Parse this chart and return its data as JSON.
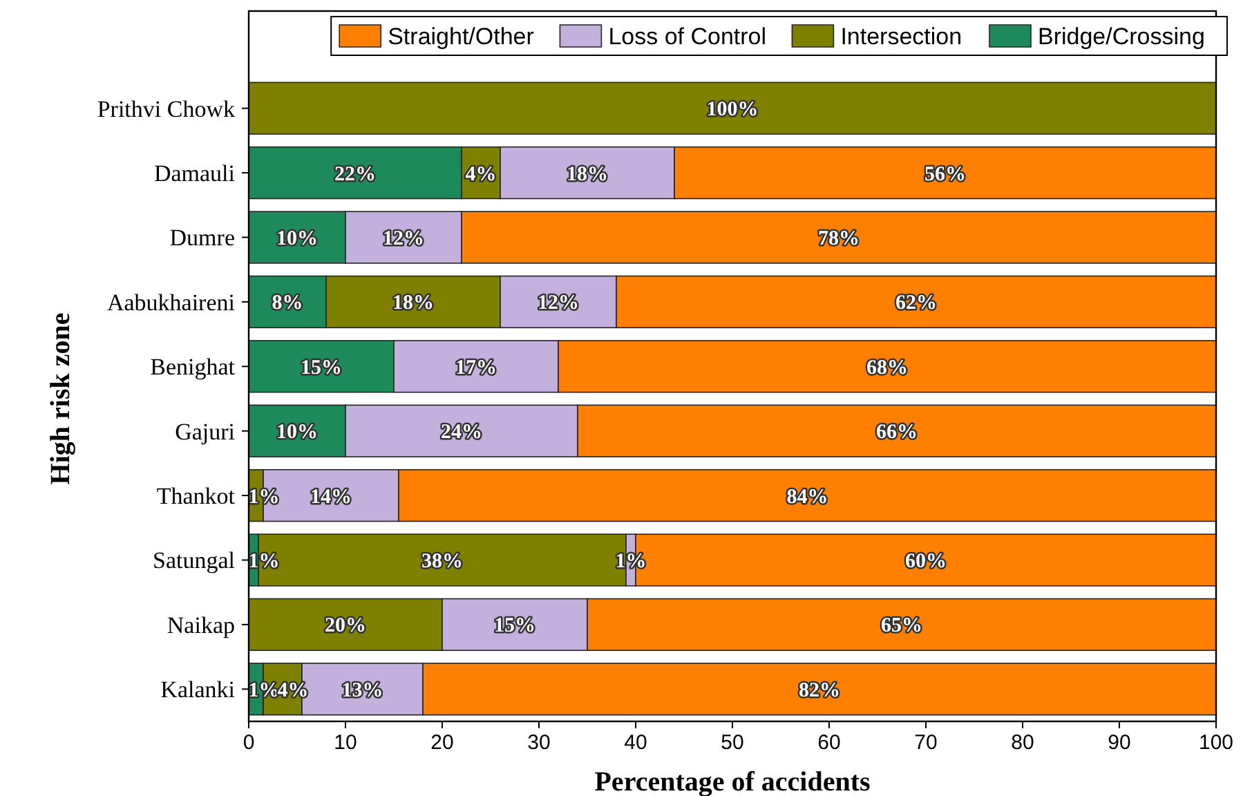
{
  "chart_data": {
    "type": "bar",
    "orientation": "horizontal",
    "stacked": true,
    "xlabel": "Percentage of accidents",
    "ylabel": "High risk zone",
    "categories": [
      "Prithvi Chowk",
      "Damauli",
      "Dumre",
      "Aabukhaireni",
      "Benighat",
      "Gajuri",
      "Thankot",
      "Satungal",
      "Naikap",
      "Kalanki"
    ],
    "series": [
      {
        "name": "Bridge/Crossing",
        "color": "#1e8a5c",
        "values": [
          null,
          22,
          10,
          8,
          15,
          10,
          null,
          1,
          null,
          1.5
        ],
        "value_labels": [
          null,
          "22%",
          "10%",
          "8%",
          "15%",
          "10%",
          null,
          "1%",
          null,
          "1%"
        ]
      },
      {
        "name": "Intersection",
        "color": "#808000",
        "values": [
          100,
          4,
          null,
          18,
          null,
          null,
          1.5,
          38,
          20,
          4
        ],
        "value_labels": [
          "100%",
          "4%",
          null,
          "18%",
          null,
          null,
          "1%",
          "38%",
          "20%",
          "4%"
        ]
      },
      {
        "name": "Loss of Control",
        "color": "#c3b0dd",
        "values": [
          null,
          18,
          12,
          12,
          17,
          24,
          14,
          1,
          15,
          12.5
        ],
        "value_labels": [
          null,
          "18%",
          "12%",
          "12%",
          "17%",
          "24%",
          "14%",
          "1%",
          "15%",
          "13%"
        ]
      },
      {
        "name": "Straight/Other",
        "color": "#ff8000",
        "values": [
          null,
          56,
          78,
          62,
          68,
          66,
          84.5,
          60,
          65,
          82
        ],
        "value_labels": [
          null,
          "56%",
          "78%",
          "62%",
          "68%",
          "66%",
          "84%",
          "60%",
          "65%",
          "82%"
        ]
      }
    ],
    "xlim": [
      0,
      100
    ],
    "xticks": [
      0,
      10,
      20,
      30,
      40,
      50,
      60,
      70,
      80,
      90,
      100
    ],
    "legend": "top",
    "grid": false
  }
}
